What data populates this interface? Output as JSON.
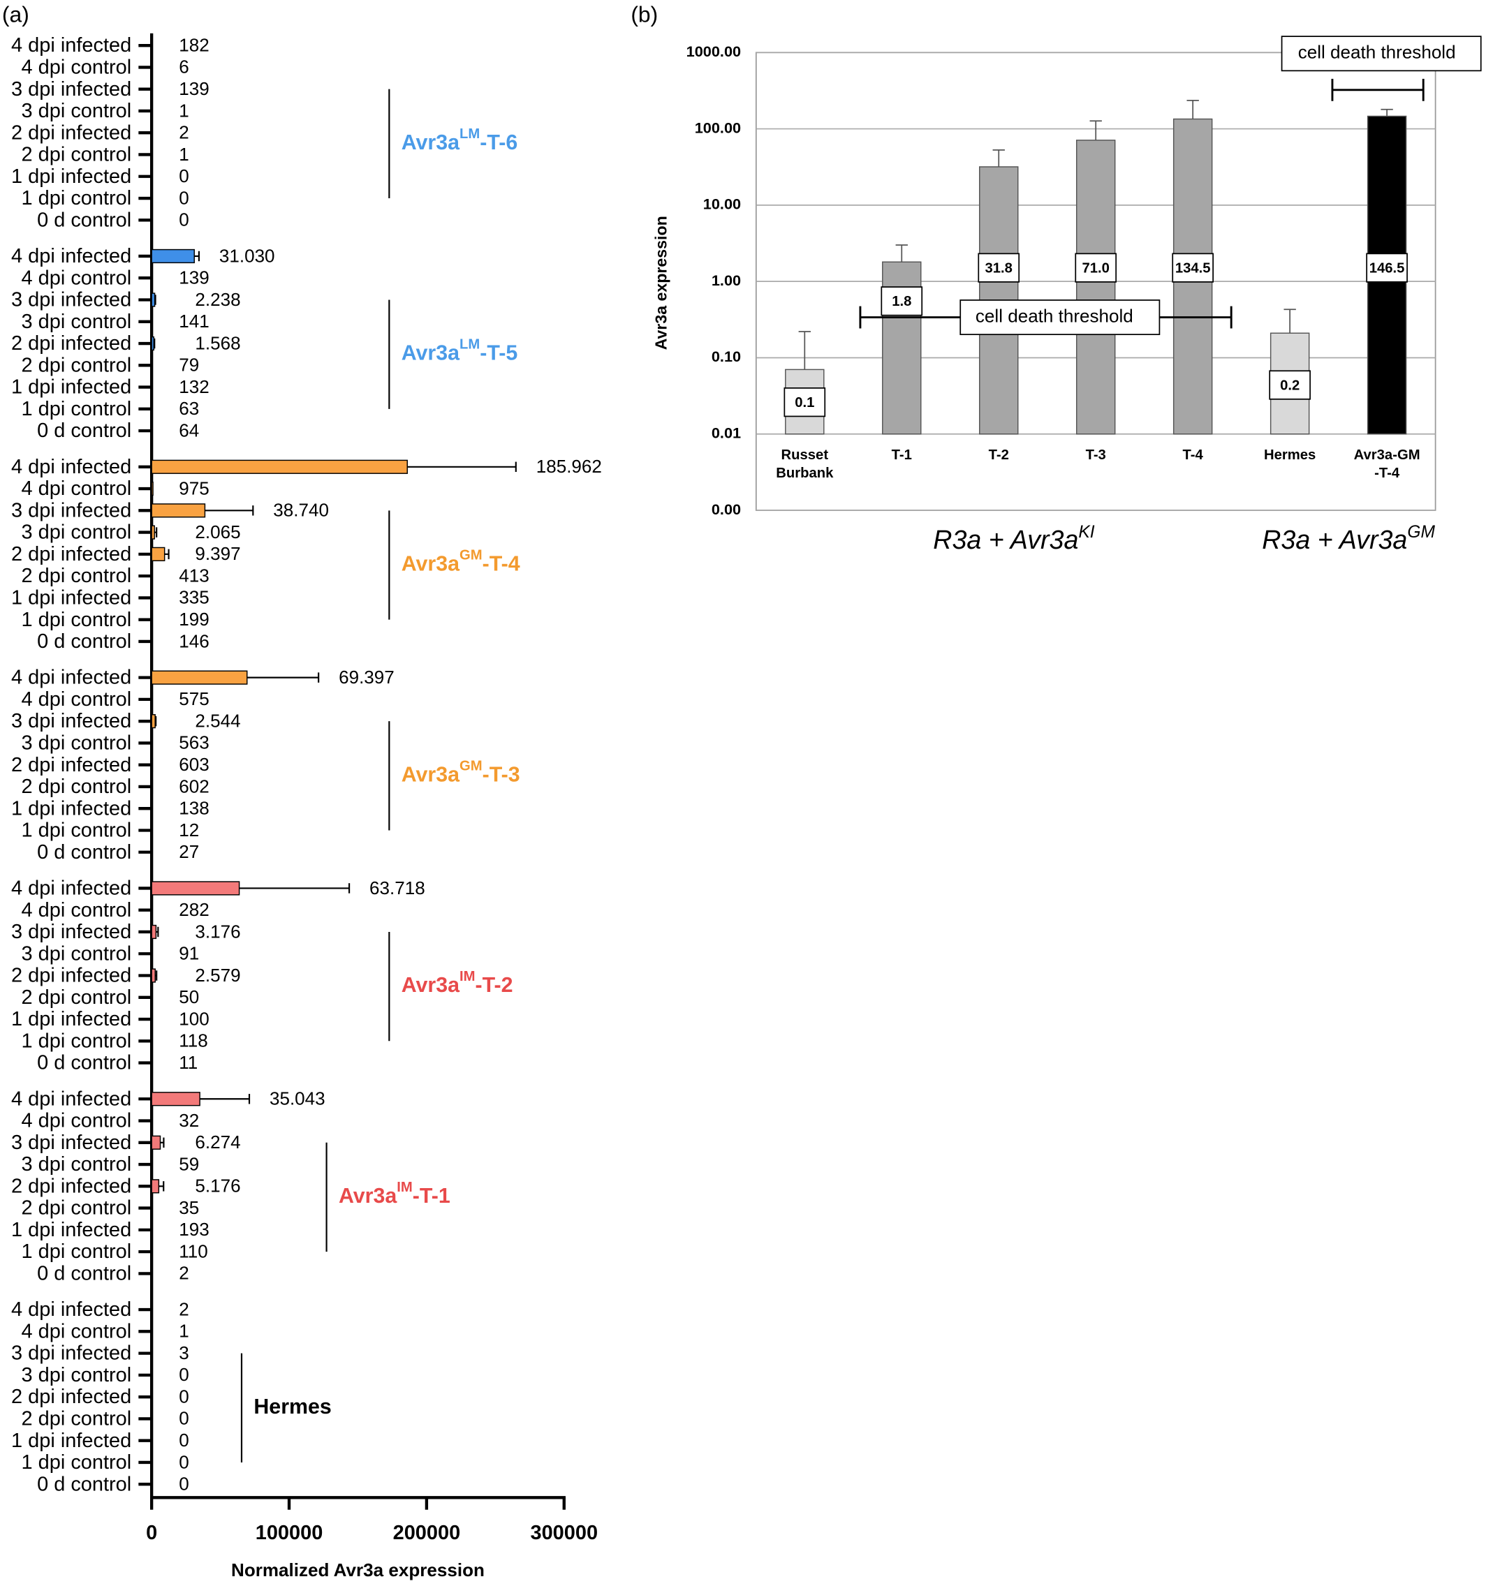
{
  "chart_data": [
    {
      "type": "bar",
      "orientation": "horizontal",
      "panel_label": "(a)",
      "xlabel": "Normalized Avr3a expression",
      "xlim": [
        0,
        300000
      ],
      "xticks": [
        0,
        100000,
        200000,
        300000
      ],
      "groups": [
        {
          "name": {
            "base": "Avr3a",
            "sup": "LM",
            "suffix": "-T-6"
          },
          "label_color": "#4a9be8",
          "color": "#3f8fe8",
          "categories": [
            "4 dpi infected",
            "4 dpi control",
            "3 dpi infected",
            "3 dpi control",
            "2 dpi infected",
            "2 dpi control",
            "1 dpi infected",
            "1 dpi control",
            "0 d control"
          ],
          "values": [
            182,
            6,
            139,
            1,
            2,
            1,
            0,
            0,
            0
          ],
          "value_labels": [
            "182",
            "6",
            "139",
            "1",
            "2",
            "1",
            "0",
            "0",
            "0"
          ],
          "errors": [
            null,
            null,
            null,
            null,
            null,
            null,
            null,
            null,
            null
          ]
        },
        {
          "name": {
            "base": "Avr3a",
            "sup": "LM",
            "suffix": "-T-5"
          },
          "label_color": "#4a9be8",
          "color": "#3f8fe8",
          "categories": [
            "4 dpi infected",
            "4 dpi control",
            "3 dpi infected",
            "3 dpi control",
            "2 dpi infected",
            "2 dpi control",
            "1 dpi infected",
            "1 dpi control",
            "0 d control"
          ],
          "values": [
            31030,
            139,
            2238,
            141,
            1568,
            79,
            132,
            63,
            64
          ],
          "value_labels": [
            "31.030",
            "139",
            "2.238",
            "141",
            "1.568",
            "79",
            "132",
            "63",
            "64"
          ],
          "errors": [
            3400,
            null,
            500,
            null,
            500,
            null,
            null,
            null,
            null
          ]
        },
        {
          "name": {
            "base": "Avr3a",
            "sup": "GM",
            "suffix": "-T-4"
          },
          "label_color": "#f39a2e",
          "color": "#f9a242",
          "categories": [
            "4 dpi infected",
            "4 dpi control",
            "3 dpi infected",
            "3 dpi control",
            "2 dpi infected",
            "2 dpi control",
            "1 dpi infected",
            "1 dpi control",
            "0 d control"
          ],
          "values": [
            185962,
            975,
            38740,
            2065,
            9397,
            413,
            335,
            199,
            146
          ],
          "value_labels": [
            "185.962",
            "975",
            "38.740",
            "2.065",
            "9.397",
            "413",
            "335",
            "199",
            "146"
          ],
          "errors": [
            79000,
            null,
            35000,
            1500,
            3000,
            null,
            null,
            null,
            null
          ]
        },
        {
          "name": {
            "base": "Avr3a",
            "sup": "GM",
            "suffix": "-T-3"
          },
          "label_color": "#f39a2e",
          "color": "#f9a242",
          "categories": [
            "4 dpi infected",
            "4 dpi control",
            "3 dpi infected",
            "3 dpi control",
            "2 dpi infected",
            "2 dpi control",
            "1 dpi infected",
            "1 dpi control",
            "0 d control"
          ],
          "values": [
            69397,
            575,
            2544,
            563,
            603,
            602,
            138,
            12,
            27
          ],
          "value_labels": [
            "69.397",
            "575",
            "2.544",
            "563",
            "603",
            "602",
            "138",
            "12",
            "27"
          ],
          "errors": [
            52000,
            null,
            500,
            null,
            null,
            null,
            null,
            null,
            null
          ]
        },
        {
          "name": {
            "base": "Avr3a",
            "sup": "IM",
            "suffix": "-T-2"
          },
          "label_color": "#e84a4a",
          "color": "#f37a7a",
          "categories": [
            "4 dpi infected",
            "4 dpi control",
            "3 dpi infected",
            "3 dpi control",
            "2 dpi infected",
            "2 dpi control",
            "1 dpi infected",
            "1 dpi control",
            "0 d control"
          ],
          "values": [
            63718,
            282,
            3176,
            91,
            2579,
            50,
            100,
            118,
            11
          ],
          "value_labels": [
            "63.718",
            "282",
            "3.176",
            "91",
            "2.579",
            "50",
            "100",
            "118",
            "11"
          ],
          "errors": [
            80000,
            null,
            1500,
            null,
            1000,
            null,
            null,
            null,
            null
          ]
        },
        {
          "name": {
            "base": "Avr3a",
            "sup": "IM",
            "suffix": "-T-1"
          },
          "label_color": "#e84a4a",
          "color": "#f37a7a",
          "categories": [
            "4 dpi infected",
            "4 dpi control",
            "3 dpi infected",
            "3 dpi control",
            "2 dpi infected",
            "2 dpi control",
            "1 dpi infected",
            "1 dpi control",
            "0 d control"
          ],
          "values": [
            35043,
            32,
            6274,
            59,
            5176,
            35,
            193,
            110,
            2
          ],
          "value_labels": [
            "35.043",
            "32",
            "6.274",
            "59",
            "5.176",
            "35",
            "193",
            "110",
            "2"
          ],
          "errors": [
            36000,
            null,
            2500,
            null,
            3500,
            null,
            null,
            null,
            null
          ]
        },
        {
          "name": {
            "base": "Hermes"
          },
          "label_color": "#000000",
          "color": "#888888",
          "categories": [
            "4 dpi infected",
            "4 dpi control",
            "3 dpi infected",
            "3 dpi control",
            "2 dpi infected",
            "2 dpi control",
            "1 dpi infected",
            "1 dpi control",
            "0 d control"
          ],
          "values": [
            2,
            1,
            3,
            0,
            0,
            0,
            0,
            0,
            0
          ],
          "value_labels": [
            "2",
            "1",
            "3",
            "0",
            "0",
            "0",
            "0",
            "0",
            "0"
          ],
          "errors": [
            null,
            null,
            null,
            null,
            null,
            null,
            null,
            null,
            null
          ]
        }
      ]
    },
    {
      "type": "bar",
      "panel_label": "(b)",
      "ylabel": "Avr3a expression",
      "log_scale": true,
      "grid": true,
      "ylim": [
        0.001,
        1000
      ],
      "yticks": [
        {
          "value": 0.001,
          "label": "0.00"
        },
        {
          "value": 0.01,
          "label": "0.01"
        },
        {
          "value": 0.1,
          "label": "0.10"
        },
        {
          "value": 1,
          "label": "1.00"
        },
        {
          "value": 10,
          "label": "10.00"
        },
        {
          "value": 100,
          "label": "100.00"
        },
        {
          "value": 1000,
          "label": "1000.00"
        }
      ],
      "categories": [
        "Russet Burbank",
        "T-1",
        "T-2",
        "T-3",
        "T-4",
        "Hermes",
        "Avr3a-GM -T-4"
      ],
      "values": [
        0.07,
        1.8,
        31.8,
        71,
        134.5,
        0.21,
        146.5
      ],
      "value_labels": [
        "0.1",
        "1.8",
        "31.8",
        "71.0",
        "134.5",
        "0.2",
        "146.5"
      ],
      "errors": [
        0.15,
        1.2,
        21,
        56,
        101,
        0.22,
        33
      ],
      "colors": [
        "#d9d9d9",
        "#a6a6a6",
        "#a6a6a6",
        "#a6a6a6",
        "#a6a6a6",
        "#d9d9d9",
        "#000000"
      ],
      "annotations": [
        "cell death threshold",
        "cell death threshold"
      ],
      "group_labels": [
        {
          "base": "R3a + Avr3a",
          "sup": "KI"
        },
        {
          "base": "R3a + Avr3a",
          "sup": "GM"
        }
      ]
    }
  ]
}
